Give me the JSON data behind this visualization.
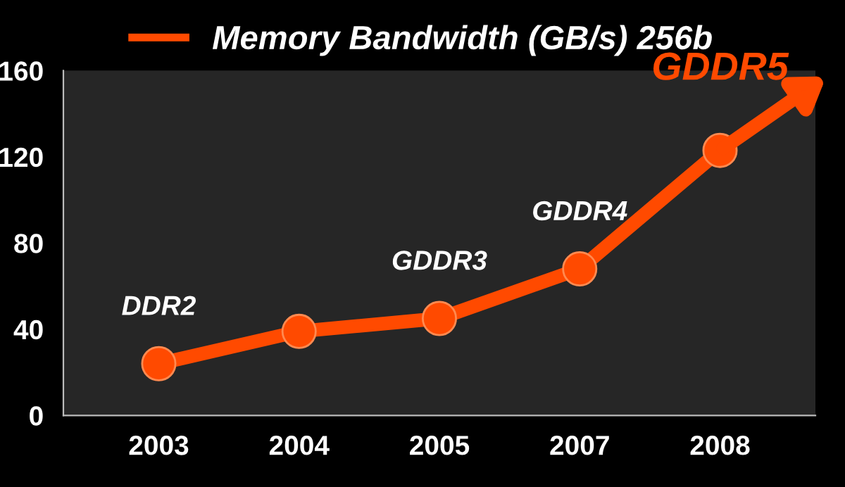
{
  "chart_data": {
    "type": "line",
    "categories": [
      "2003",
      "2004",
      "2005",
      "2007",
      "2008"
    ],
    "series": [
      {
        "name": "Memory Bandwidth (GB/s) 256b",
        "color": "#ff4a00",
        "values": [
          24,
          39,
          45,
          68,
          123
        ]
      }
    ],
    "ylim": [
      0,
      160
    ],
    "yticks": [
      0,
      40,
      80,
      120,
      160
    ],
    "marker": "circle",
    "line_style": "solid",
    "legend": "top",
    "grid": false,
    "annotations": [
      {
        "text": "DDR2",
        "x": "2003",
        "y": 24
      },
      {
        "text": "GDDR3",
        "x": "2005",
        "y": 45
      },
      {
        "text": "GDDR4",
        "x": "2007",
        "y": 68
      },
      {
        "text": "GDDR5",
        "x": "2008",
        "y": 123
      }
    ]
  }
}
